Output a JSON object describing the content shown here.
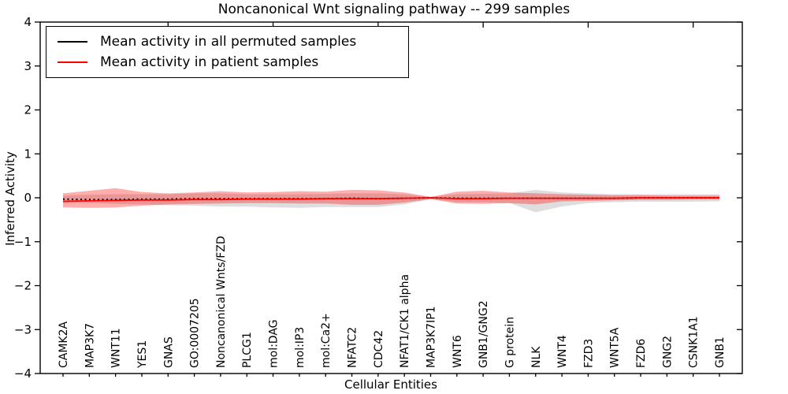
{
  "chart_data": {
    "type": "line",
    "title": "Noncanonical Wnt signaling pathway -- 299 samples",
    "xlabel": "Cellular Entities",
    "ylabel": "Inferred Activity",
    "ylim": [
      -4,
      4
    ],
    "y_ticks": [
      "4",
      "3",
      "2",
      "1",
      "0",
      "−1",
      "−2",
      "−3",
      "−4"
    ],
    "grid": false,
    "legend_position": "upper left",
    "categories": [
      "CAMK2A",
      "MAP3K7",
      "WNT11",
      "YES1",
      "GNAS",
      "GO:0007205",
      "Noncanonical Wnts/FZD",
      "PLCG1",
      "mol:DAG",
      "mol:IP3",
      "mol:Ca2+",
      "NFATC2",
      "CDC42",
      "NFAT1/CK1 alpha",
      "MAP3K7IP1",
      "WNT6",
      "GNB1/GNG2",
      "G protein",
      "NLK",
      "WNT4",
      "FZD3",
      "WNT5A",
      "FZD6",
      "GNG2",
      "CSNK1A1",
      "GNB1"
    ],
    "series": [
      {
        "name": "Mean activity in all permuted samples",
        "color": "#000000",
        "style": "dotted",
        "values": [
          -0.03,
          -0.04,
          -0.04,
          -0.03,
          -0.03,
          -0.02,
          -0.02,
          -0.02,
          -0.02,
          -0.02,
          -0.02,
          -0.01,
          -0.02,
          -0.01,
          0,
          -0.01,
          -0.01,
          -0.01,
          -0.01,
          -0.01,
          -0.01,
          -0.01,
          0,
          0,
          0,
          0
        ]
      },
      {
        "name": "Mean activity in patient samples",
        "color": "#ff0000",
        "style": "solid",
        "values": [
          -0.08,
          -0.07,
          -0.06,
          -0.05,
          -0.05,
          -0.04,
          -0.04,
          -0.03,
          -0.03,
          -0.03,
          -0.02,
          -0.02,
          -0.02,
          -0.01,
          0,
          -0.02,
          -0.02,
          -0.01,
          -0.01,
          -0.01,
          -0.01,
          -0.01,
          0,
          0,
          0,
          0
        ]
      }
    ],
    "bands": [
      {
        "name": "permuted-samples-range",
        "color": "rgba(0,0,0,0.13)",
        "upper": [
          0.05,
          0.07,
          0.08,
          0.08,
          0.08,
          0.1,
          0.1,
          0.08,
          0.08,
          0.08,
          0.09,
          0.1,
          0.1,
          0.08,
          0.02,
          0.08,
          0.09,
          0.1,
          0.18,
          0.12,
          0.1,
          0.08,
          0.08,
          0.08,
          0.08,
          0.08
        ],
        "lower": [
          -0.12,
          -0.12,
          -0.14,
          -0.15,
          -0.17,
          -0.18,
          -0.2,
          -0.2,
          -0.22,
          -0.23,
          -0.21,
          -0.21,
          -0.21,
          -0.15,
          -0.03,
          -0.1,
          -0.1,
          -0.12,
          -0.33,
          -0.2,
          -0.12,
          -0.1,
          -0.09,
          -0.09,
          -0.09,
          -0.08
        ]
      },
      {
        "name": "patient-samples-range",
        "color": "rgba(255,0,0,0.32)",
        "upper": [
          0.1,
          0.16,
          0.22,
          0.13,
          0.1,
          0.12,
          0.15,
          0.12,
          0.13,
          0.15,
          0.14,
          0.18,
          0.17,
          0.12,
          0.02,
          0.14,
          0.16,
          0.12,
          0.1,
          0.08,
          0.07,
          0.06,
          0.06,
          0.05,
          0.05,
          0.05
        ],
        "lower": [
          -0.22,
          -0.23,
          -0.22,
          -0.18,
          -0.15,
          -0.14,
          -0.13,
          -0.12,
          -0.12,
          -0.13,
          -0.13,
          -0.16,
          -0.16,
          -0.11,
          -0.03,
          -0.13,
          -0.14,
          -0.12,
          -0.15,
          -0.08,
          -0.07,
          -0.06,
          -0.05,
          -0.05,
          -0.04,
          -0.04
        ]
      }
    ]
  }
}
